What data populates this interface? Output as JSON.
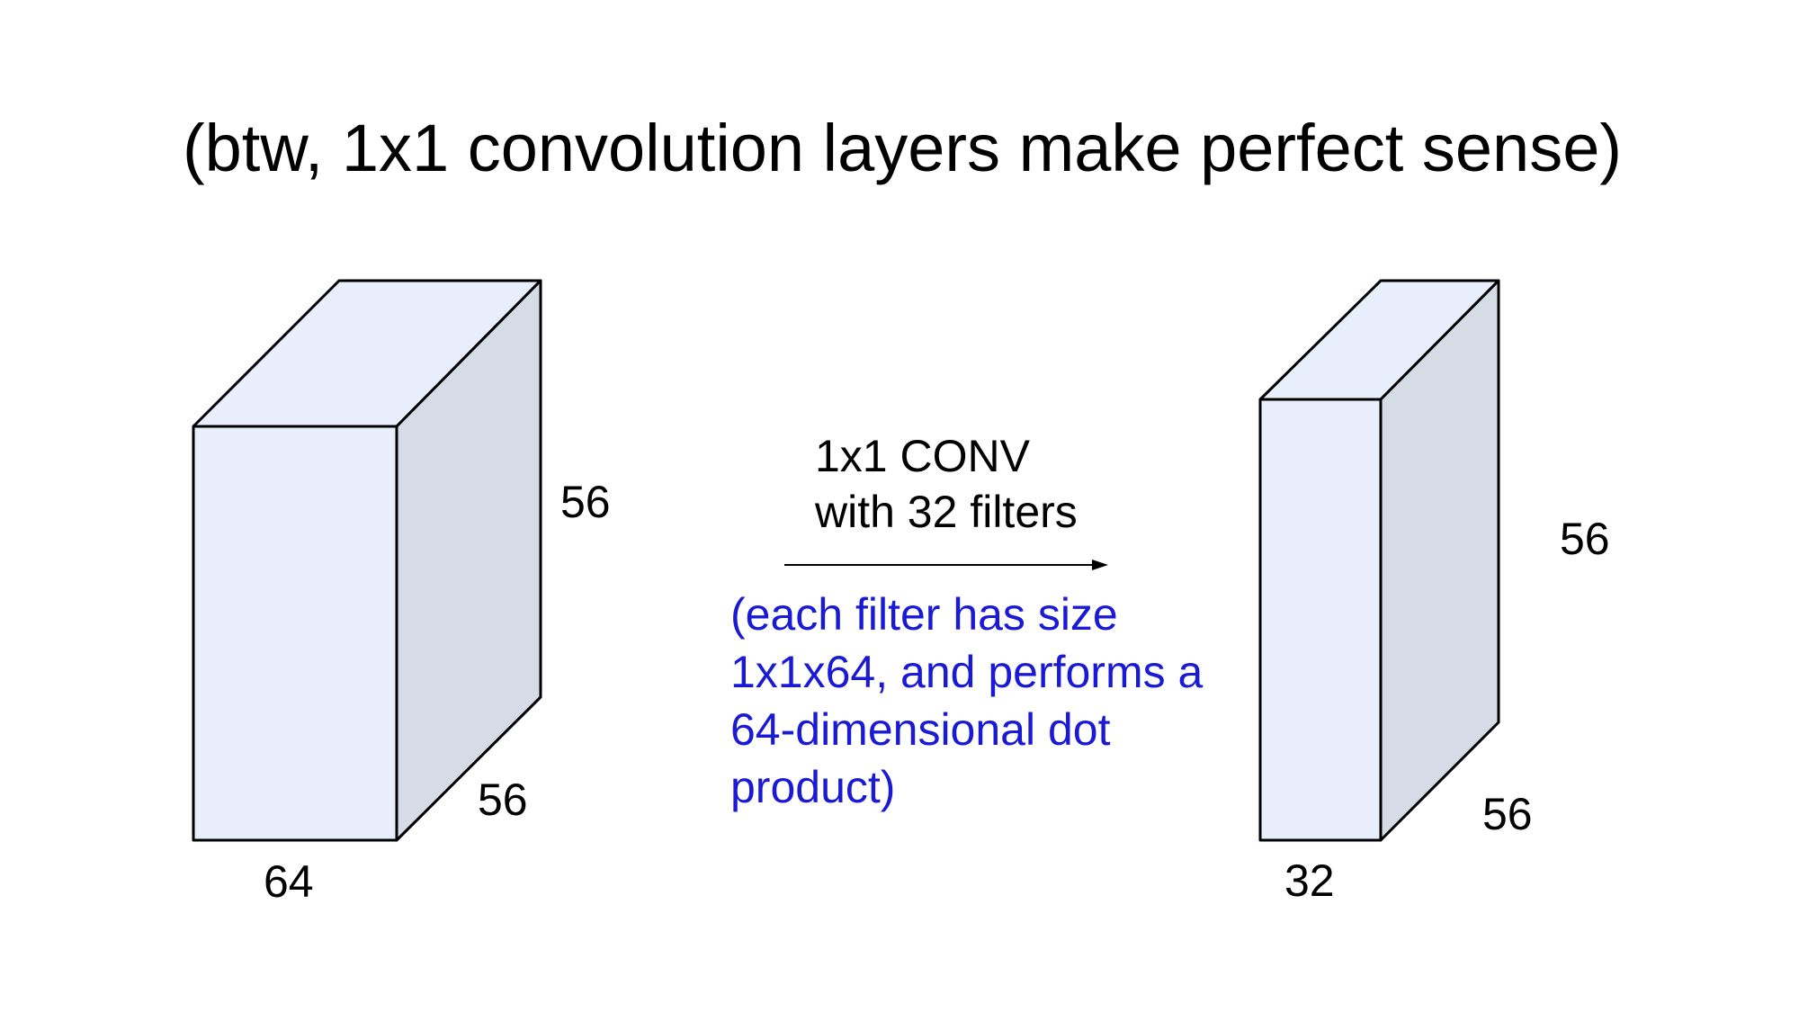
{
  "slide": {
    "title": "(btw, 1x1 convolution layers make perfect sense)"
  },
  "input_volume": {
    "height_label": "56",
    "width_label": "56",
    "depth_label": "64"
  },
  "operation": {
    "line1": "1x1 CONV",
    "line2": "with 32 filters",
    "note_lines": [
      "(each filter has size",
      "1x1x64, and performs a",
      "64-dimensional dot",
      "product)"
    ]
  },
  "output_volume": {
    "height_label": "56",
    "width_label": "56",
    "depth_label": "32"
  },
  "colors": {
    "front_face": "#e8eefb",
    "top_face": "#e8eefb",
    "side_face": "#d6dce6",
    "edge": "#000000",
    "note_text": "#1a1ad4",
    "text": "#000000"
  }
}
